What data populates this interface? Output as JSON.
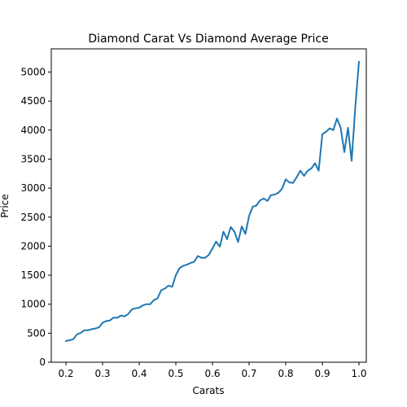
{
  "chart_data": {
    "type": "line",
    "title": "Diamond Carat Vs Diamond Average Price",
    "xlabel": "Carats",
    "ylabel": "Price",
    "xlim": [
      0.16,
      1.02
    ],
    "ylim": [
      0,
      5400
    ],
    "xticks": [
      0.2,
      0.3,
      0.4,
      0.5,
      0.6,
      0.7,
      0.8,
      0.9,
      1.0
    ],
    "xtick_labels": [
      "0.2",
      "0.3",
      "0.4",
      "0.5",
      "0.6",
      "0.7",
      "0.8",
      "0.9",
      "1.0"
    ],
    "yticks": [
      0,
      500,
      1000,
      1500,
      2000,
      2500,
      3000,
      3500,
      4000,
      4500,
      5000
    ],
    "ytick_labels": [
      "0",
      "500",
      "1000",
      "1500",
      "2000",
      "2500",
      "3000",
      "3500",
      "4000",
      "4500",
      "5000"
    ],
    "grid": false,
    "line_color": "#1f77b4",
    "series": [
      {
        "x": [
          0.2,
          0.21,
          0.22,
          0.23,
          0.24,
          0.25,
          0.26,
          0.27,
          0.28,
          0.29,
          0.3,
          0.31,
          0.32,
          0.33,
          0.34,
          0.35,
          0.36,
          0.37,
          0.38,
          0.39,
          0.4,
          0.41,
          0.42,
          0.43,
          0.44,
          0.45,
          0.46,
          0.47,
          0.48,
          0.49,
          0.5,
          0.51,
          0.52,
          0.53,
          0.54,
          0.55,
          0.56,
          0.57,
          0.58,
          0.59,
          0.6,
          0.61,
          0.62,
          0.63,
          0.64,
          0.65,
          0.66,
          0.67,
          0.68,
          0.69,
          0.7,
          0.71,
          0.72,
          0.73,
          0.74,
          0.75,
          0.76,
          0.77,
          0.78,
          0.79,
          0.8,
          0.81,
          0.82,
          0.83,
          0.84,
          0.85,
          0.86,
          0.87,
          0.88,
          0.89,
          0.9,
          0.91,
          0.92,
          0.93,
          0.94,
          0.95,
          0.96,
          0.97,
          0.98,
          0.99,
          1.0
        ],
        "values": [
          365,
          380,
          395,
          480,
          505,
          550,
          550,
          570,
          580,
          600,
          680,
          710,
          720,
          770,
          765,
          805,
          790,
          830,
          910,
          930,
          940,
          980,
          1000,
          1000,
          1070,
          1100,
          1240,
          1270,
          1320,
          1300,
          1500,
          1620,
          1660,
          1680,
          1710,
          1730,
          1830,
          1800,
          1800,
          1850,
          1960,
          2080,
          1990,
          2250,
          2120,
          2330,
          2250,
          2070,
          2340,
          2210,
          2520,
          2680,
          2700,
          2790,
          2820,
          2780,
          2880,
          2890,
          2920,
          2990,
          3150,
          3100,
          3090,
          3190,
          3300,
          3210,
          3300,
          3340,
          3430,
          3300,
          3930,
          3970,
          4030,
          4000,
          4200,
          4040,
          3620,
          4040,
          3470,
          4400,
          5180
        ]
      }
    ]
  }
}
